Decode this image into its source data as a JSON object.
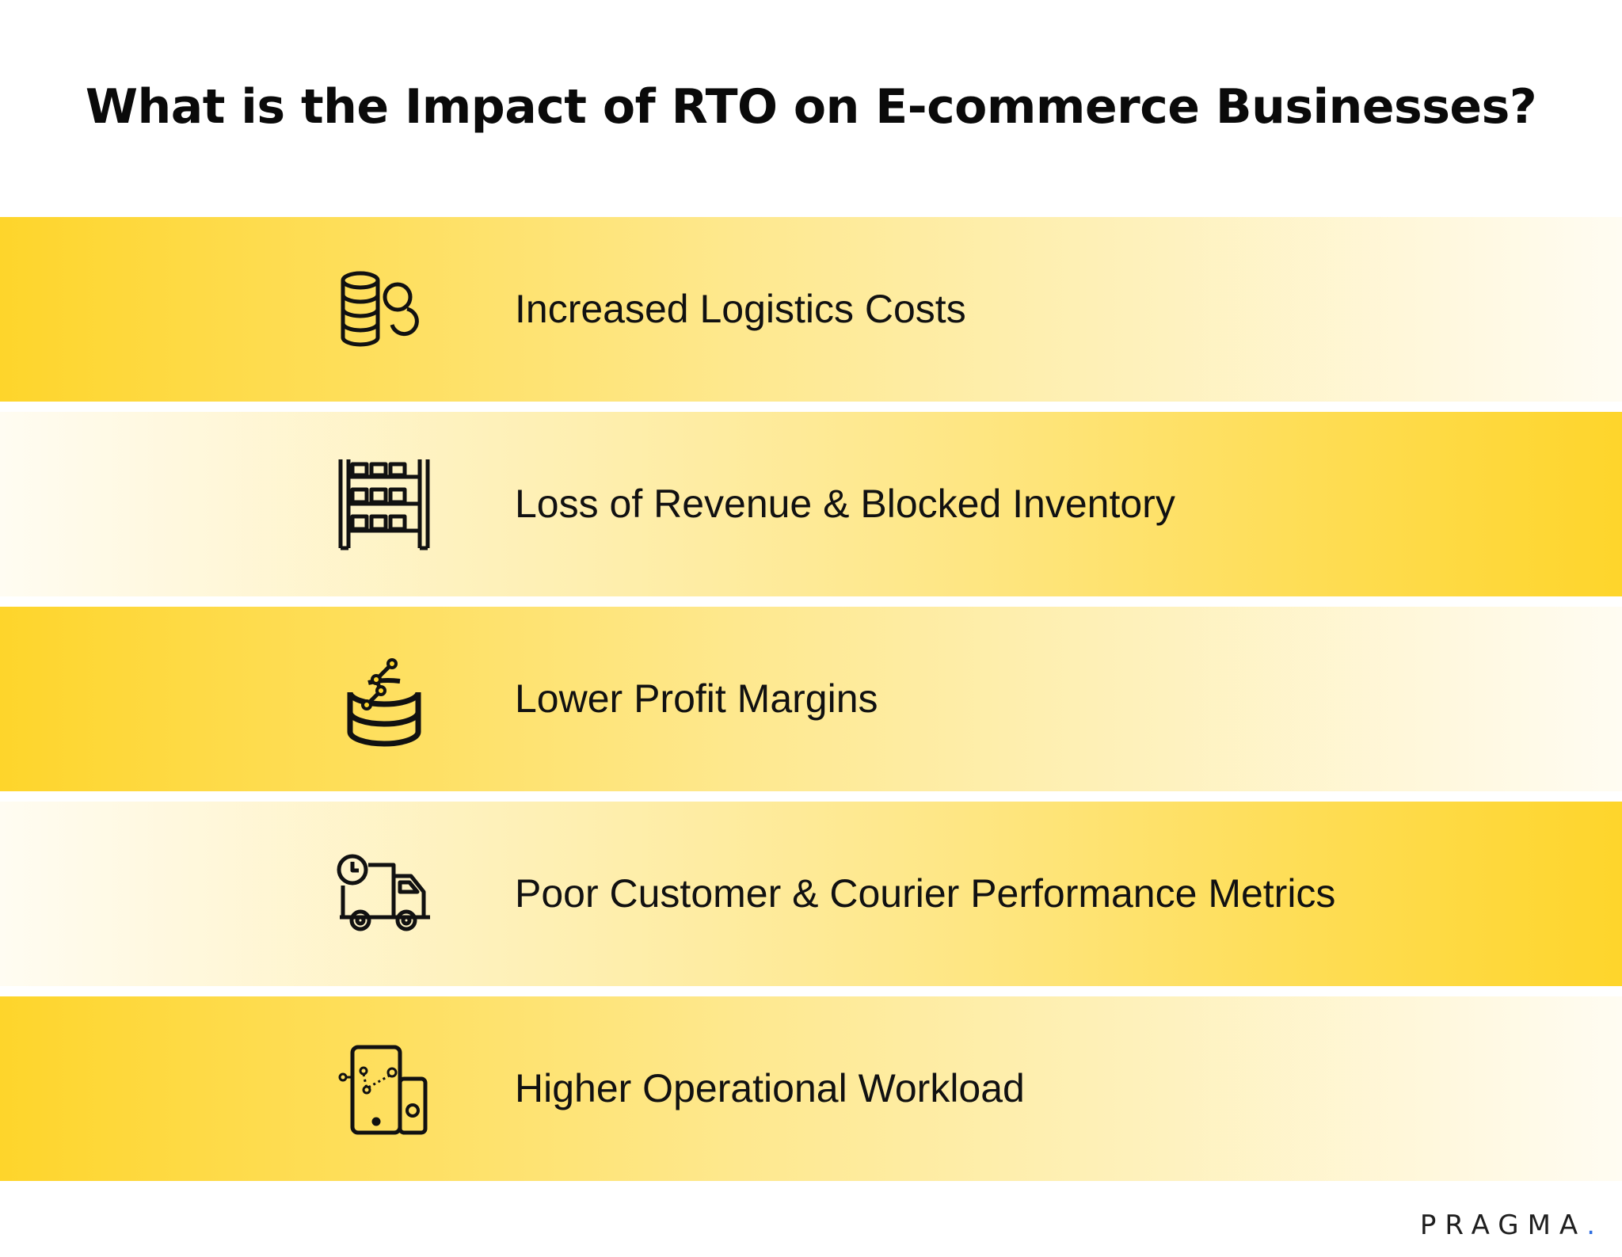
{
  "title": "What is the Impact of RTO on E-commerce Businesses?",
  "items": [
    {
      "label": "Increased Logistics Costs",
      "icon": "coins-icon"
    },
    {
      "label": "Loss of Revenue & Blocked Inventory",
      "icon": "warehouse-shelves-icon"
    },
    {
      "label": "Lower Profit Margins",
      "icon": "coin-stack-chart-icon"
    },
    {
      "label": "Poor Customer & Courier Performance Metrics",
      "icon": "delivery-truck-clock-icon"
    },
    {
      "label": "Higher Operational Workload",
      "icon": "mobile-devices-route-icon"
    }
  ],
  "brand": {
    "name": "PRAGMA",
    "dot": ".",
    "accent": "#2f6fe0"
  },
  "colors": {
    "band_yellow": "#fed52b",
    "band_light": "#fffcf2",
    "text": "#111111"
  }
}
